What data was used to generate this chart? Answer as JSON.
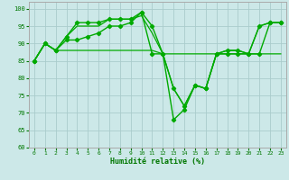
{
  "xlabel": "Humidité relative (%)",
  "background_color": "#cce8e8",
  "grid_color": "#aacccc",
  "line_color": "#00aa00",
  "xlim": [
    -0.5,
    23.5
  ],
  "ylim": [
    60,
    102
  ],
  "yticks": [
    60,
    65,
    70,
    75,
    80,
    85,
    90,
    95,
    100
  ],
  "xticks": [
    0,
    1,
    2,
    3,
    4,
    5,
    6,
    7,
    8,
    9,
    10,
    11,
    12,
    13,
    14,
    15,
    16,
    17,
    18,
    19,
    20,
    21,
    22,
    23
  ],
  "series": [
    {
      "y": [
        85,
        90,
        88,
        92,
        96,
        96,
        96,
        97,
        97,
        97,
        99,
        95,
        87,
        77,
        72,
        78,
        77,
        87,
        88,
        88,
        87,
        95,
        96,
        96
      ],
      "marker": "D",
      "markersize": 2.2,
      "linewidth": 1.0,
      "zorder": 4
    },
    {
      "y": [
        85,
        90,
        88,
        92,
        95,
        95,
        95,
        97,
        97,
        97,
        98,
        93,
        87,
        77,
        72,
        78,
        77,
        87,
        88,
        88,
        87,
        95,
        96,
        96
      ],
      "marker": null,
      "markersize": 0,
      "linewidth": 0.9,
      "zorder": 3
    },
    {
      "y": [
        85,
        90,
        88,
        91,
        91,
        92,
        93,
        95,
        95,
        96,
        99,
        87,
        87,
        68,
        71,
        78,
        77,
        87,
        87,
        87,
        87,
        87,
        96,
        96
      ],
      "marker": "D",
      "markersize": 2.2,
      "linewidth": 1.0,
      "zorder": 4
    },
    {
      "y": [
        85,
        90,
        88,
        88,
        88,
        88,
        88,
        88,
        88,
        88,
        88,
        88,
        87,
        87,
        87,
        87,
        87,
        87,
        87,
        87,
        87,
        87,
        87,
        87
      ],
      "marker": null,
      "markersize": 0,
      "linewidth": 0.9,
      "zorder": 2
    }
  ]
}
